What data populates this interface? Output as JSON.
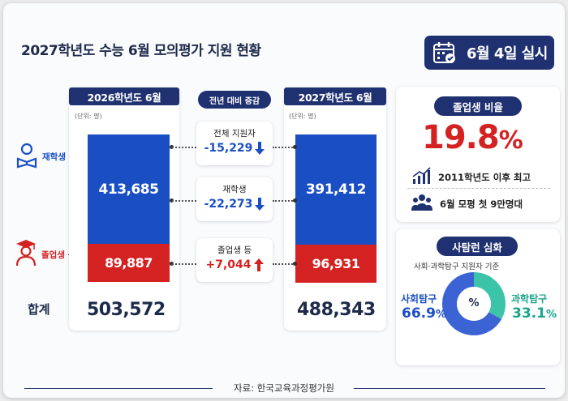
{
  "title": "2027학년도 수능 6월 모의평가 지원 현황",
  "date_badge": "6월 4일 실시",
  "unit": "(단위: 명)",
  "row_labels": {
    "current": "재학생",
    "grad": "졸업생 등",
    "total": "합계"
  },
  "change_header": "전년 대비 증감",
  "changes": [
    {
      "label": "전체 지원자",
      "value": "-15,229",
      "dir": "down"
    },
    {
      "label": "재학생",
      "value": "-22,273",
      "dir": "down"
    },
    {
      "label": "졸업생 등",
      "value": "+7,044",
      "dir": "up"
    }
  ],
  "grad_ratio": {
    "header": "졸업생 비율",
    "value": "19.8",
    "pct": "%",
    "line1": "2011학년도 이후 최고",
    "line2": "6월 모평 첫 9만명대"
  },
  "tamgu": {
    "header": "사탐런 심화",
    "sub": "사회·과학탐구 지원자 기준",
    "center": "%",
    "left_label": "사회탐구",
    "left_value": "66.9",
    "left_pct": "%",
    "right_label": "과학탐구",
    "right_value": "33.1",
    "right_pct": "%"
  },
  "source": "자료: 한국교육과정평가원",
  "colors": {
    "navy": "#1f3170",
    "blue": "#1a4fc4",
    "red": "#d42222",
    "teal": "#3cc4a8",
    "pieblue": "#3b63d4"
  },
  "chart_data": [
    {
      "type": "bar",
      "stacked": true,
      "categories": [
        "2026학년도 6월",
        "2027학년도 6월"
      ],
      "series": [
        {
          "name": "재학생",
          "values": [
            413685,
            391412
          ]
        },
        {
          "name": "졸업생 등",
          "values": [
            89887,
            96931
          ]
        }
      ],
      "totals": [
        503572,
        488343
      ],
      "labels": {
        "seg_top": [
          "413,685",
          "391,412"
        ],
        "seg_bot": [
          "89,887",
          "96,931"
        ],
        "totals": [
          "503,572",
          "488,343"
        ]
      }
    },
    {
      "type": "pie",
      "categories": [
        "사회탐구",
        "과학탐구"
      ],
      "values": [
        66.9,
        33.1
      ]
    }
  ]
}
